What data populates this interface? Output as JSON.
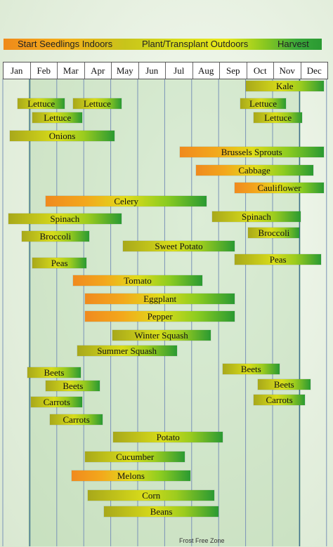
{
  "legend": {
    "start_indoors": "Start Seedlings Indoors",
    "plant_outdoors": "Plant/Transplant Outdoors",
    "harvest": "Harvest"
  },
  "months": [
    "Jan",
    "Feb",
    "Mar",
    "Apr",
    "May",
    "Jun",
    "Jul",
    "Aug",
    "Sep",
    "Oct",
    "Nov",
    "Dec"
  ],
  "frost_free_zone_label": "Frost Free Zone",
  "colors": {
    "start": "#f08a1e",
    "plant": "#d8dc1a",
    "harvest": "#2a9a32",
    "zone": "#a8d49a"
  },
  "chart_data": {
    "type": "gantt",
    "axis": "month",
    "x_range": [
      "Jan",
      "Dec"
    ],
    "frost_free_zone": {
      "start_month": 2.0,
      "end_month": 12.0
    },
    "stages": [
      "start",
      "plant",
      "harvest"
    ],
    "crops": [
      {
        "name": "Kale",
        "start": 10.0,
        "end": 12.9,
        "stages": [
          "plant",
          "harvest"
        ]
      },
      {
        "name": "Lettuce",
        "start": 1.55,
        "end": 3.3,
        "stages": [
          "plant",
          "harvest"
        ]
      },
      {
        "name": "Lettuce",
        "start": 3.6,
        "end": 5.4,
        "stages": [
          "plant",
          "harvest"
        ]
      },
      {
        "name": "Lettuce",
        "start": 9.8,
        "end": 11.5,
        "stages": [
          "plant",
          "harvest"
        ]
      },
      {
        "name": "Lettuce",
        "start": 2.1,
        "end": 3.95,
        "stages": [
          "plant",
          "harvest"
        ]
      },
      {
        "name": "Lettuce",
        "start": 10.3,
        "end": 12.1,
        "stages": [
          "plant",
          "harvest"
        ]
      },
      {
        "name": "Onions",
        "start": 1.25,
        "end": 5.15,
        "stages": [
          "plant",
          "harvest"
        ]
      },
      {
        "name": "Brussels Sprouts",
        "start": 7.55,
        "end": 12.9,
        "stages": [
          "start",
          "plant",
          "harvest"
        ]
      },
      {
        "name": "Cabbage",
        "start": 8.15,
        "end": 12.5,
        "stages": [
          "start",
          "plant",
          "harvest"
        ]
      },
      {
        "name": "Cauliflower",
        "start": 9.6,
        "end": 12.9,
        "stages": [
          "start",
          "plant",
          "harvest"
        ]
      },
      {
        "name": "Celery",
        "start": 2.6,
        "end": 8.55,
        "stages": [
          "start",
          "plant",
          "harvest"
        ]
      },
      {
        "name": "Spinach",
        "start": 1.2,
        "end": 5.4,
        "stages": [
          "plant",
          "harvest"
        ]
      },
      {
        "name": "Spinach",
        "start": 8.75,
        "end": 12.05,
        "stages": [
          "plant",
          "harvest"
        ]
      },
      {
        "name": "Broccoli",
        "start": 1.7,
        "end": 4.2,
        "stages": [
          "plant",
          "harvest"
        ]
      },
      {
        "name": "Broccoli",
        "start": 10.1,
        "end": 12.0,
        "stages": [
          "plant",
          "harvest"
        ]
      },
      {
        "name": "Sweet Potato",
        "start": 5.45,
        "end": 9.6,
        "stages": [
          "plant",
          "harvest"
        ]
      },
      {
        "name": "Peas",
        "start": 2.1,
        "end": 4.1,
        "stages": [
          "plant",
          "harvest"
        ]
      },
      {
        "name": "Peas",
        "start": 9.6,
        "end": 12.8,
        "stages": [
          "plant",
          "harvest"
        ]
      },
      {
        "name": "Tomato",
        "start": 3.6,
        "end": 8.4,
        "stages": [
          "start",
          "plant",
          "harvest"
        ]
      },
      {
        "name": "Eggplant",
        "start": 4.05,
        "end": 9.6,
        "stages": [
          "start",
          "plant",
          "harvest"
        ]
      },
      {
        "name": "Pepper",
        "start": 4.05,
        "end": 9.6,
        "stages": [
          "start",
          "plant",
          "harvest"
        ]
      },
      {
        "name": "Winter Squash",
        "start": 5.05,
        "end": 8.7,
        "stages": [
          "plant",
          "harvest"
        ]
      },
      {
        "name": "Summer Squash",
        "start": 3.75,
        "end": 7.45,
        "stages": [
          "plant",
          "harvest"
        ]
      },
      {
        "name": "Beets",
        "start": 1.9,
        "end": 3.9,
        "stages": [
          "plant",
          "harvest"
        ]
      },
      {
        "name": "Beets",
        "start": 9.15,
        "end": 11.25,
        "stages": [
          "plant",
          "harvest"
        ]
      },
      {
        "name": "Beets",
        "start": 2.6,
        "end": 4.6,
        "stages": [
          "plant",
          "harvest"
        ]
      },
      {
        "name": "Beets",
        "start": 10.45,
        "end": 12.4,
        "stages": [
          "plant",
          "harvest"
        ]
      },
      {
        "name": "Carrots",
        "start": 2.05,
        "end": 3.95,
        "stages": [
          "plant",
          "harvest"
        ]
      },
      {
        "name": "Carrots",
        "start": 10.3,
        "end": 12.2,
        "stages": [
          "plant",
          "harvest"
        ]
      },
      {
        "name": "Carrots",
        "start": 2.75,
        "end": 4.7,
        "stages": [
          "plant",
          "harvest"
        ]
      },
      {
        "name": "Potato",
        "start": 5.1,
        "end": 9.15,
        "stages": [
          "plant",
          "harvest"
        ]
      },
      {
        "name": "Cucumber",
        "start": 4.05,
        "end": 7.75,
        "stages": [
          "plant",
          "harvest"
        ]
      },
      {
        "name": "Melons",
        "start": 3.55,
        "end": 7.95,
        "stages": [
          "start",
          "plant",
          "harvest"
        ]
      },
      {
        "name": "Corn",
        "start": 4.15,
        "end": 8.85,
        "stages": [
          "plant",
          "harvest"
        ]
      },
      {
        "name": "Beans",
        "start": 4.75,
        "end": 9.0,
        "stages": [
          "plant",
          "harvest"
        ]
      }
    ]
  }
}
